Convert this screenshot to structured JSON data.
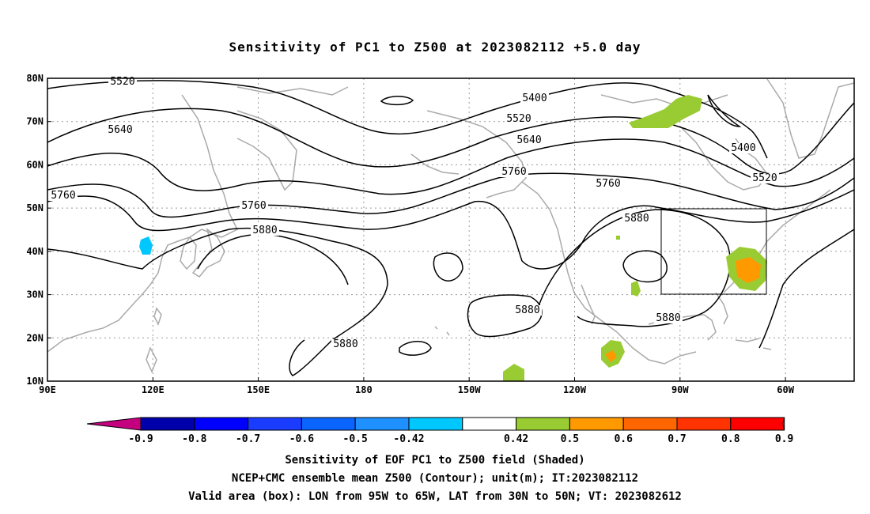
{
  "title": "Sensitivity of PC1 to Z500 at 2023082112 +5.0 day",
  "map": {
    "lat_ticks": [
      "80N",
      "70N",
      "60N",
      "50N",
      "40N",
      "30N",
      "20N",
      "10N"
    ],
    "lon_ticks": [
      "90E",
      "120E",
      "150E",
      "180",
      "150W",
      "120W",
      "90W",
      "60W"
    ],
    "grid": "dotted",
    "coastline_color": "#aaaaaa",
    "contour_labels": [
      "5520",
      "5640",
      "5760",
      "5760",
      "5880",
      "5880",
      "5400",
      "5520",
      "5640",
      "5760",
      "5760",
      "5880",
      "5880",
      "5880",
      "5400",
      "5520"
    ],
    "valid_box": {
      "lon": "95W to 65W",
      "lat": "30N to 50N"
    }
  },
  "colorbar": {
    "labels": [
      "-0.9",
      "-0.8",
      "-0.7",
      "-0.6",
      "-0.5",
      "-0.42",
      "0.42",
      "0.5",
      "0.6",
      "0.7",
      "0.8",
      "0.9"
    ],
    "colors": [
      "#c4007f",
      "#0000aa",
      "#0000ff",
      "#1a3cff",
      "#0a64ff",
      "#1e90ff",
      "#00c8ff",
      "#ffffff",
      "#99cc33",
      "#ff9900",
      "#ff6600",
      "#ff3300",
      "#ff0000",
      "#ff99cc"
    ]
  },
  "footer": {
    "line1": "Sensitivity of EOF PC1 to Z500 field (Shaded)",
    "line2": "NCEP+CMC ensemble mean Z500 (Contour); unit(m); IT:2023082112",
    "line3": "Valid area (box): LON from 95W to 65W, LAT from 30N to 50N; VT: 2023082612"
  }
}
